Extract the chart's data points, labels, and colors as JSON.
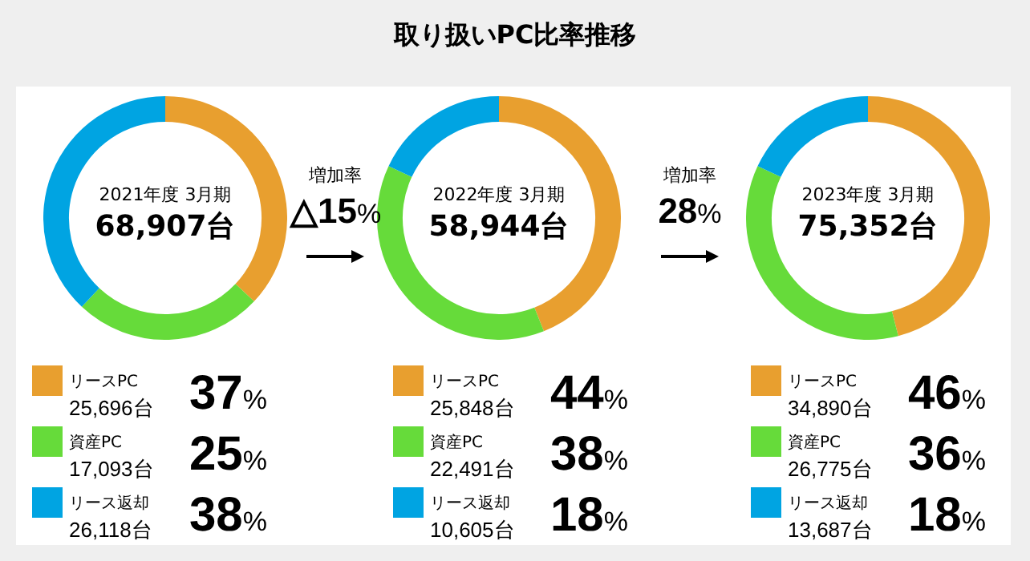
{
  "chart_data": [
    {
      "type": "other",
      "title": "取り扱いPC比率推移"
    },
    {
      "type": "donut",
      "subtitle": "2021年度 3月期",
      "categories": [
        "リースPC",
        "資産PC",
        "リース返却"
      ],
      "values": [
        37,
        25,
        38
      ],
      "colors": [
        "#e89f2f",
        "#66db3a",
        "#00a4e2"
      ],
      "value_labels": [
        "37%",
        "25%",
        "38%"
      ],
      "legend": "bottom",
      "annotations": [
        "68,907台",
        "25,696台",
        "17,093台",
        "26,118台"
      ]
    },
    {
      "type": "donut",
      "subtitle": "2022年度 3月期",
      "categories": [
        "リースPC",
        "資産PC",
        "リース返却"
      ],
      "values": [
        44,
        38,
        18
      ],
      "colors": [
        "#e89f2f",
        "#66db3a",
        "#00a4e2"
      ],
      "value_labels": [
        "44%",
        "38%",
        "18%"
      ],
      "legend": "bottom",
      "annotations": [
        "58,944台",
        "25,848台",
        "22,491台",
        "10,605台",
        "増加率",
        "△15%"
      ]
    },
    {
      "type": "donut",
      "subtitle": "2023年度 3月期",
      "categories": [
        "リースPC",
        "資産PC",
        "リース返却"
      ],
      "values": [
        46,
        36,
        18
      ],
      "colors": [
        "#e89f2f",
        "#66db3a",
        "#00a4e2"
      ],
      "value_labels": [
        "46%",
        "36%",
        "18%"
      ],
      "legend": "bottom",
      "annotations": [
        "75,352台",
        "34,890台",
        "26,775台",
        "13,687台",
        "増加率",
        "28%"
      ]
    }
  ]
}
